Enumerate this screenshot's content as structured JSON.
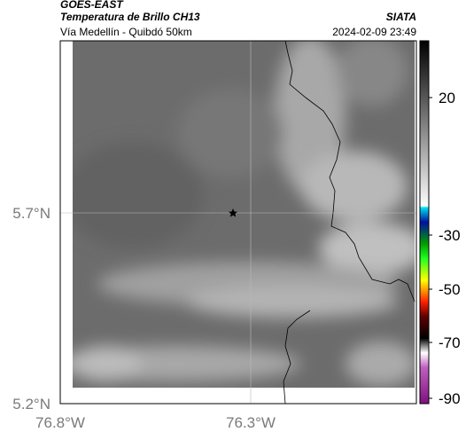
{
  "header": {
    "source": "GOES-EAST",
    "title": "Temperatura de Brillo CH13",
    "agency": "SIATA",
    "subtitle": "Vía Medellín - Quibdó 50km",
    "datetime": "2024-02-09 23:49"
  },
  "map": {
    "lat_labels": [
      "5.7°N",
      "5.2°N"
    ],
    "lon_labels": [
      "76.8°W",
      "76.3°W"
    ]
  },
  "colorbar": {
    "ticks": [
      20,
      -30,
      -50,
      -70,
      -90
    ]
  }
}
